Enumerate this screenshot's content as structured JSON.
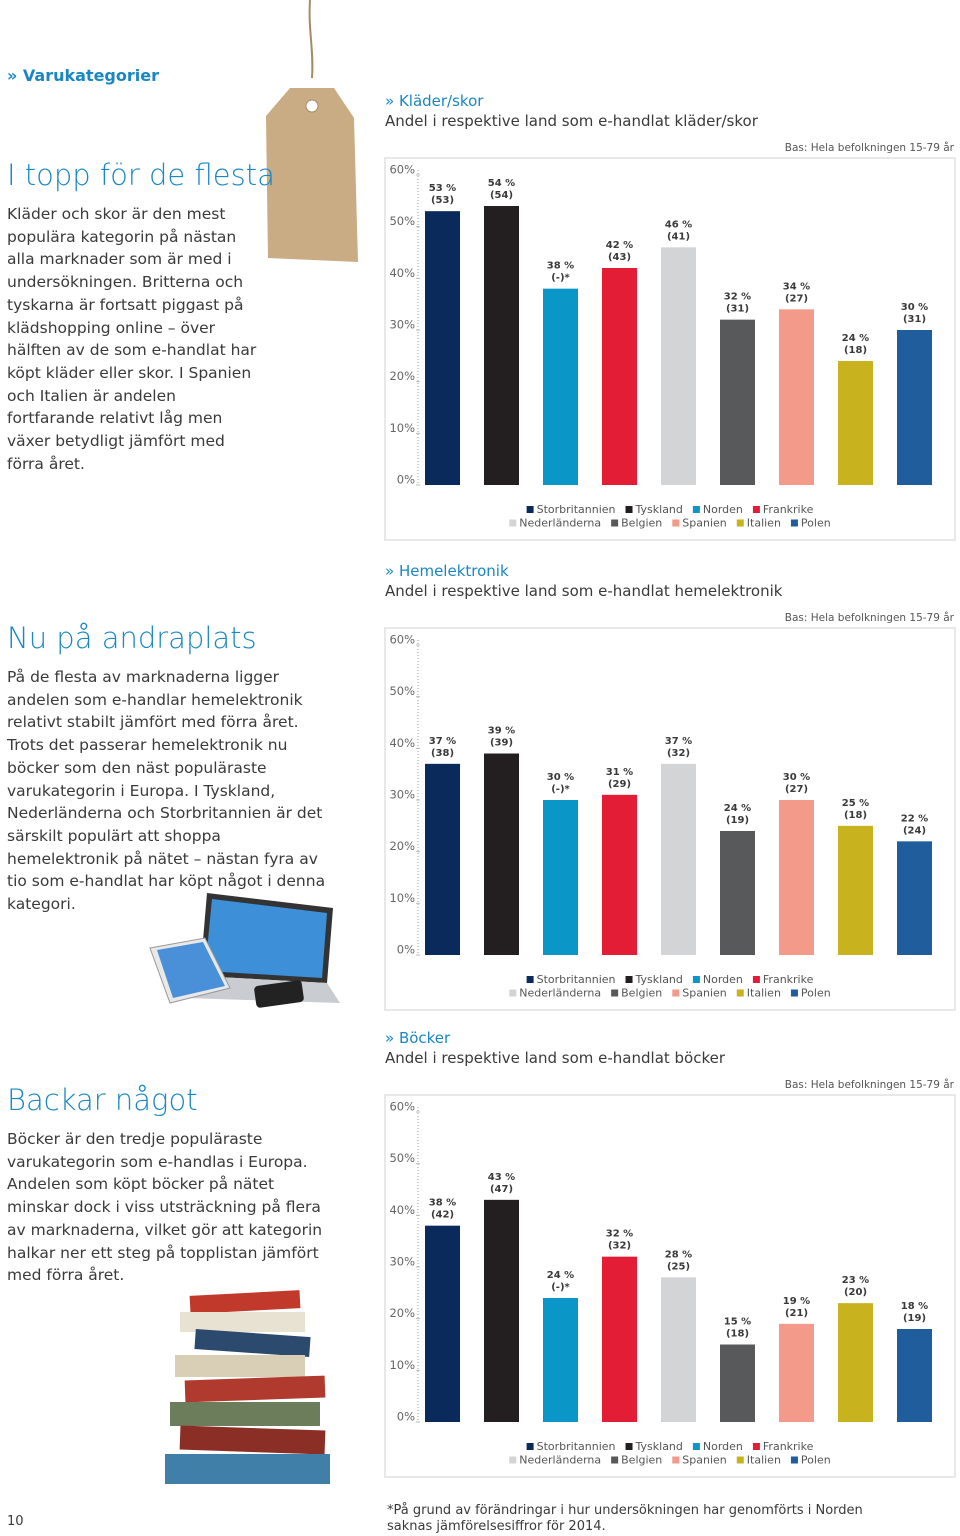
{
  "header": {
    "section": "» Varukategorier"
  },
  "sections": [
    {
      "title": "I topp för de flesta",
      "body": "Kläder och skor är den mest populära kategorin på nästan alla marknader som är med i undersökningen. Britterna och tyskarna är fortsatt piggast på klädshopping online – över hälften av de som e-handlat har köpt kläder eller skor. I Spanien och Italien är andelen fortfarande relativt låg men växer betydligt jämfört med förra året."
    },
    {
      "title": "Nu på andraplats",
      "body": "På de flesta av marknaderna ligger andelen som e-handlar hemelektronik relativt stabilt jämfört med förra året. Trots det passerar hemelektronik nu böcker som den näst populäraste varukategorin i Europa. I Tyskland, Nederländerna och Storbritannien är det särskilt populärt att shoppa hemelektronik på nätet – nästan fyra av tio som e-handlat har köpt något i denna kategori."
    },
    {
      "title": "Backar något",
      "body": "Böcker är den tredje populäraste varukategorin som e-handlas i Europa. Andelen som köpt böcker på nätet minskar dock i viss utsträckning på flera av marknaderna, vilket gör att kategorin halkar ner ett steg på topplistan jämfört med förra året."
    }
  ],
  "charts": [
    {
      "type": "bar",
      "kicker": "» Kläder/skor",
      "title": "Andel i respektive land som e-handlat kläder/skor",
      "note": "Bas: Hela befolkningen 15-79 år",
      "categories": [
        "Storbritannien",
        "Tyskland",
        "Norden",
        "Frankrike",
        "Nederländerna",
        "Belgien",
        "Spanien",
        "Italien",
        "Polen"
      ],
      "colors": [
        "#0b2a5c",
        "#231f20",
        "#0a96c6",
        "#e31d36",
        "#d3d4d6",
        "#58595b",
        "#f39a8a",
        "#c8b21e",
        "#1f5d9c"
      ],
      "values": [
        53,
        54,
        38,
        42,
        46,
        32,
        34,
        24,
        30
      ],
      "value_labels": [
        "53 %",
        "54 %",
        "38 %",
        "42 %",
        "46 %",
        "32 %",
        "34 %",
        "24 %",
        "30 %"
      ],
      "prev_values": [
        53,
        54,
        null,
        43,
        41,
        31,
        27,
        18,
        31
      ],
      "prev_labels": [
        "(53)",
        "(54)",
        "(-)*",
        "(43)",
        "(41)",
        "(31)",
        "(27)",
        "(18)",
        "(31)"
      ],
      "ylim": [
        0,
        60
      ],
      "yticks": [
        {
          "value": 0,
          "label": "0%"
        },
        {
          "value": 10,
          "label": "10%"
        },
        {
          "value": 20,
          "label": "20%"
        },
        {
          "value": 30,
          "label": "30%"
        },
        {
          "value": 40,
          "label": "40%"
        },
        {
          "value": 50,
          "label": "50%"
        },
        {
          "value": 60,
          "label": "60%"
        }
      ]
    },
    {
      "type": "bar",
      "kicker": "» Hemelektronik",
      "title": "Andel i respektive land som e-handlat hemelektronik",
      "note": "Bas: Hela befolkningen 15-79 år",
      "categories": [
        "Storbritannien",
        "Tyskland",
        "Norden",
        "Frankrike",
        "Nederländerna",
        "Belgien",
        "Spanien",
        "Italien",
        "Polen"
      ],
      "colors": [
        "#0b2a5c",
        "#231f20",
        "#0a96c6",
        "#e31d36",
        "#d3d4d6",
        "#58595b",
        "#f39a8a",
        "#c8b21e",
        "#1f5d9c"
      ],
      "values": [
        37,
        39,
        30,
        31,
        37,
        24,
        30,
        25,
        22
      ],
      "value_labels": [
        "37 %",
        "39 %",
        "30 %",
        "31 %",
        "37 %",
        "24 %",
        "30 %",
        "25 %",
        "22 %"
      ],
      "prev_values": [
        38,
        39,
        null,
        29,
        32,
        19,
        27,
        18,
        24
      ],
      "prev_labels": [
        "(38)",
        "(39)",
        "(-)*",
        "(29)",
        "(32)",
        "(19)",
        "(27)",
        "(18)",
        "(24)"
      ],
      "ylim": [
        0,
        60
      ],
      "yticks": [
        {
          "value": 0,
          "label": "0%"
        },
        {
          "value": 10,
          "label": "10%"
        },
        {
          "value": 20,
          "label": "20%"
        },
        {
          "value": 30,
          "label": "30%"
        },
        {
          "value": 40,
          "label": "40%"
        },
        {
          "value": 50,
          "label": "50%"
        },
        {
          "value": 60,
          "label": "60%"
        }
      ]
    },
    {
      "type": "bar",
      "kicker": "» Böcker",
      "title": "Andel i respektive land som e-handlat böcker",
      "note": "Bas: Hela befolkningen 15-79 år",
      "categories": [
        "Storbritannien",
        "Tyskland",
        "Norden",
        "Frankrike",
        "Nederländerna",
        "Belgien",
        "Spanien",
        "Italien",
        "Polen"
      ],
      "colors": [
        "#0b2a5c",
        "#231f20",
        "#0a96c6",
        "#e31d36",
        "#d3d4d6",
        "#58595b",
        "#f39a8a",
        "#c8b21e",
        "#1f5d9c"
      ],
      "values": [
        38,
        43,
        24,
        32,
        28,
        15,
        19,
        23,
        18
      ],
      "value_labels": [
        "38 %",
        "43 %",
        "24 %",
        "32 %",
        "28 %",
        "15 %",
        "19 %",
        "23 %",
        "18 %"
      ],
      "prev_values": [
        42,
        47,
        null,
        32,
        25,
        18,
        21,
        20,
        19
      ],
      "prev_labels": [
        "(42)",
        "(47)",
        "(-)*",
        "(32)",
        "(25)",
        "(18)",
        "(21)",
        "(20)",
        "(19)"
      ],
      "ylim": [
        0,
        60
      ],
      "yticks": [
        {
          "value": 0,
          "label": "0%"
        },
        {
          "value": 10,
          "label": "10%"
        },
        {
          "value": 20,
          "label": "20%"
        },
        {
          "value": 30,
          "label": "30%"
        },
        {
          "value": 40,
          "label": "40%"
        },
        {
          "value": 50,
          "label": "50%"
        },
        {
          "value": 60,
          "label": "60%"
        }
      ]
    }
  ],
  "page_number": "10",
  "footnote": "*På grund av förändringar i hur undersökningen har genomförts i Norden saknas jämförelsesiffror för 2014."
}
